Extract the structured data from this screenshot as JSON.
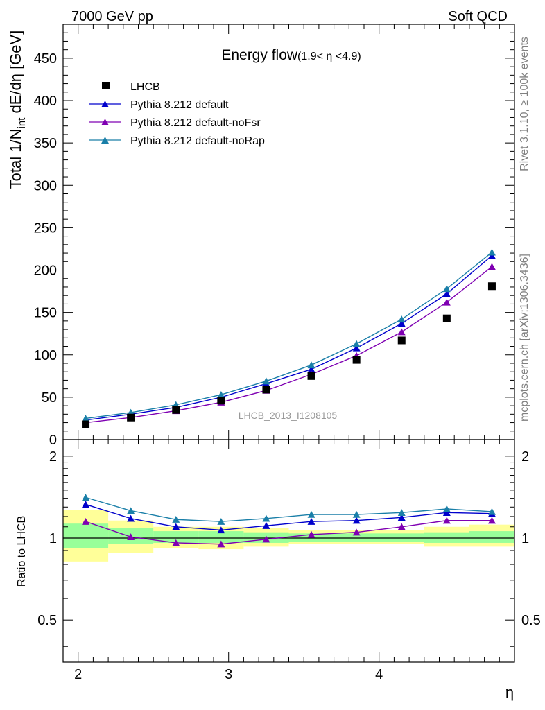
{
  "header": {
    "left": "7000 GeV pp",
    "right": "Soft QCD"
  },
  "side_text": {
    "rivet": "Rivet 3.1.10, ≥ 100k events",
    "mcplots": "mcplots.cern.ch [arXiv:1306.3436]"
  },
  "chart_data": {
    "type": "line",
    "title": "Energy flow",
    "title_sub": "(1.9< η <4.9)",
    "ylabel": "Total 1/N_int dE/dη [GeV]",
    "ylabel_main": "Total 1/N",
    "ylabel_sub": "int",
    "ylabel_rest": " dE/dη [GeV]",
    "xlabel": "η",
    "analysis_tag": "LHCB_2013_I1208105",
    "xlim": [
      1.9,
      4.9
    ],
    "ylim": [
      0,
      490
    ],
    "x_ticks": [
      "2",
      "3",
      "4"
    ],
    "y_ticks": [
      "0",
      "50",
      "100",
      "150",
      "200",
      "250",
      "300",
      "350",
      "400",
      "450"
    ],
    "x": [
      2.05,
      2.35,
      2.65,
      2.95,
      3.25,
      3.55,
      3.85,
      4.15,
      4.45,
      4.75
    ],
    "bin_edges": [
      1.9,
      2.2,
      2.5,
      2.8,
      3.1,
      3.4,
      3.7,
      4.0,
      4.3,
      4.6,
      4.9
    ],
    "data": {
      "name": "LHCB",
      "color": "#000000",
      "values": [
        18,
        26,
        35,
        46,
        59,
        75,
        94,
        117,
        143,
        181
      ]
    },
    "series": [
      {
        "name": "Pythia 8.212 default",
        "color": "#0000cc",
        "values": [
          23,
          30,
          38,
          50,
          66,
          83,
          108,
          137,
          172,
          217
        ]
      },
      {
        "name": "Pythia 8.212 default-noFsr",
        "color": "#7f00b2",
        "values": [
          20,
          26,
          34,
          44,
          58,
          77,
          99,
          127,
          162,
          204
        ]
      },
      {
        "name": "Pythia 8.212 default-noRap",
        "color": "#1a7fa8",
        "values": [
          25,
          32,
          41,
          53,
          69,
          88,
          113,
          142,
          178,
          221
        ]
      }
    ],
    "ratio": {
      "ylabel": "Ratio to LHCB",
      "ylim": [
        0.35,
        2.3
      ],
      "y_ticks": [
        "0.5",
        "1",
        "2"
      ],
      "band_yellow": [
        [
          0.82,
          1.27
        ],
        [
          0.88,
          1.16
        ],
        [
          0.92,
          1.1
        ],
        [
          0.91,
          1.1
        ],
        [
          0.93,
          1.09
        ],
        [
          0.95,
          1.07
        ],
        [
          0.95,
          1.07
        ],
        [
          0.95,
          1.07
        ],
        [
          0.93,
          1.1
        ],
        [
          0.93,
          1.12
        ]
      ],
      "band_green": [
        [
          0.92,
          1.13
        ],
        [
          0.95,
          1.09
        ],
        [
          0.96,
          1.06
        ],
        [
          0.96,
          1.06
        ],
        [
          0.96,
          1.05
        ],
        [
          0.97,
          1.04
        ],
        [
          0.97,
          1.04
        ],
        [
          0.97,
          1.04
        ],
        [
          0.96,
          1.05
        ],
        [
          0.96,
          1.06
        ]
      ],
      "series": [
        {
          "name": "Pythia 8.212 default",
          "color": "#0000cc",
          "values": [
            1.33,
            1.18,
            1.1,
            1.07,
            1.11,
            1.15,
            1.16,
            1.19,
            1.24,
            1.23
          ]
        },
        {
          "name": "Pythia 8.212 default-noFsr",
          "color": "#7f00b2",
          "values": [
            1.15,
            1.01,
            0.96,
            0.95,
            0.99,
            1.03,
            1.05,
            1.1,
            1.16,
            1.16
          ]
        },
        {
          "name": "Pythia 8.212 default-noRap",
          "color": "#1a7fa8",
          "values": [
            1.41,
            1.26,
            1.17,
            1.15,
            1.18,
            1.22,
            1.22,
            1.24,
            1.28,
            1.25
          ]
        }
      ]
    }
  }
}
